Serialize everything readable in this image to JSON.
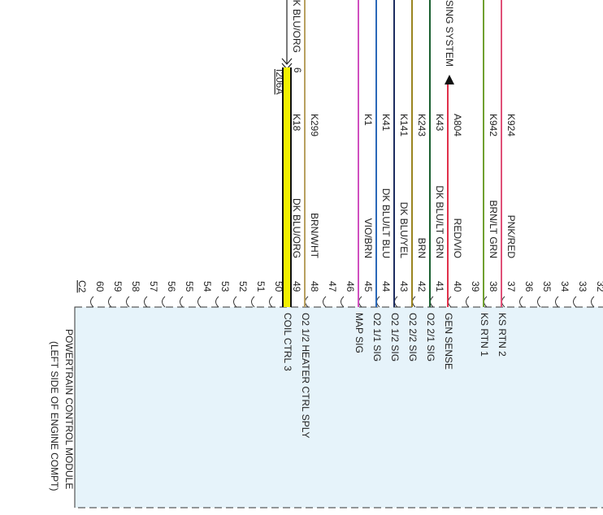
{
  "connector": {
    "label": "C2",
    "pins": [
      "60",
      "59",
      "58",
      "57",
      "56",
      "55",
      "54",
      "53",
      "52",
      "51",
      "50",
      "49",
      "48",
      "47",
      "46",
      "45",
      "44",
      "43",
      "42",
      "41",
      "40",
      "39",
      "38",
      "37",
      "36",
      "35",
      "34",
      "33",
      "32"
    ]
  },
  "module": {
    "name": "POWERTRAIN CONTROL MODULE",
    "location": "(LEFT SIDE OF ENGINE COMPT)"
  },
  "upstream": {
    "wire_color": "K BLU/ORG",
    "connector_pin": "6",
    "connector": "I206A",
    "system": "SING SYSTEM"
  },
  "wires": [
    {
      "pin": "49",
      "circuit": "K18",
      "color": "DK BLU/ORG",
      "function": "COIL CTRL 3"
    },
    {
      "pin": "48",
      "circuit": "K299",
      "color": "BRN/WHT",
      "function": "O2 1/2 HEATER CTRL SPLY"
    },
    {
      "pin": "45",
      "circuit": "K1",
      "color": "VIO/BRN",
      "function": "MAP SIG"
    },
    {
      "pin": "44",
      "circuit": "K41",
      "color": "DK BLU/LT BLU",
      "function": "O2 1/1 SIG"
    },
    {
      "pin": "43",
      "circuit": "K141",
      "color": "DK BLU/YEL",
      "function": "O2 1/2 SIG"
    },
    {
      "pin": "42",
      "circuit": "K243",
      "color": "BRN",
      "function": "O2 2/2 SIG"
    },
    {
      "pin": "41",
      "circuit": "K43",
      "color": "DK BLU/LT GRN",
      "function": "O2 2/1 SIG"
    },
    {
      "pin": "40",
      "circuit": "A804",
      "color": "RED/VIO",
      "function": "GEN SENSE"
    },
    {
      "pin": "38",
      "circuit": "K942",
      "color": "BRN/LT GRN",
      "function": "KS RTN 1"
    },
    {
      "pin": "37",
      "circuit": "K924",
      "color": "PNK/RED",
      "function": "KS RTN 2"
    }
  ]
}
